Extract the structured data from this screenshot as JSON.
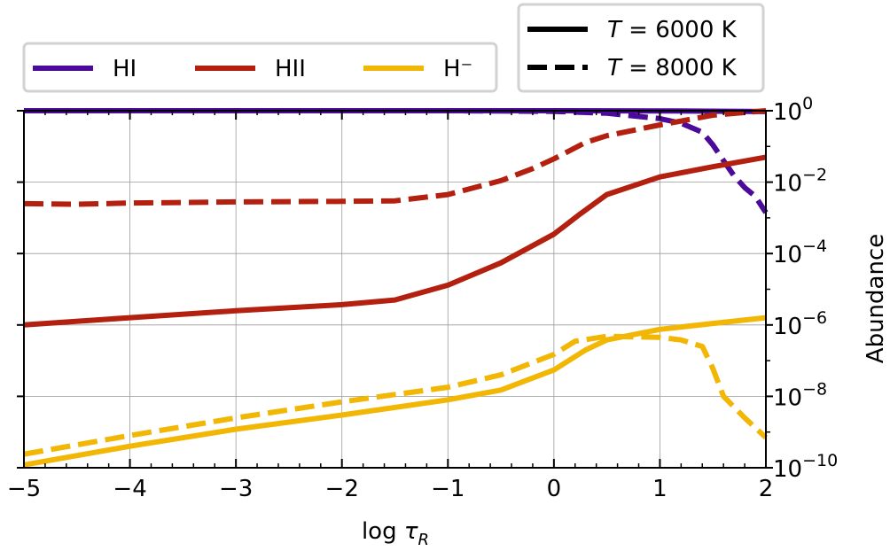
{
  "chart_data": {
    "type": "line",
    "xlabel": "log τ_R",
    "ylabel": "Abundance",
    "xlim": [
      -5,
      2
    ],
    "ylim": [
      1e-10,
      1.5
    ],
    "y_scale": "log",
    "y_axis_side": "right",
    "grid": true,
    "x_ticks": [
      -5,
      -4,
      -3,
      -2,
      -1,
      0,
      1,
      2
    ],
    "x_tick_labels": [
      "−5",
      "−4",
      "−3",
      "−2",
      "−1",
      "0",
      "1",
      "2"
    ],
    "y_ticks": [
      1e-10,
      1e-08,
      1e-06,
      0.0001,
      0.01,
      1
    ],
    "y_tick_labels": [
      {
        "base": "10",
        "exp": "−10"
      },
      {
        "base": "10",
        "exp": "−8"
      },
      {
        "base": "10",
        "exp": "−6"
      },
      {
        "base": "10",
        "exp": "−4"
      },
      {
        "base": "10",
        "exp": "−2"
      },
      {
        "base": "10",
        "exp": "0"
      }
    ],
    "legend_species": {
      "placement": "above plot, left",
      "entries": [
        {
          "label": "HI",
          "color": "#4b0a9a"
        },
        {
          "label": "HII",
          "color": "#b3200f"
        },
        {
          "label": "H⁻",
          "color": "#f2b705"
        }
      ]
    },
    "legend_temperature": {
      "placement": "above plot, right",
      "entries": [
        {
          "label_T": "T",
          "label_rest": " = 6000 K",
          "style": "solid"
        },
        {
          "label_T": "T",
          "label_rest": " = 8000 K",
          "style": "dashed"
        }
      ]
    },
    "series": [
      {
        "species": "HI",
        "temperature": "6000 K",
        "style": "solid",
        "color": "#4b0a9a",
        "x": [
          -5,
          -3,
          -1,
          0,
          1,
          2
        ],
        "y": [
          1.0,
          1.0,
          1.0,
          0.9998,
          0.99,
          0.95
        ]
      },
      {
        "species": "HI",
        "temperature": "8000 K",
        "style": "dashed",
        "color": "#4b0a9a",
        "x": [
          -5,
          -2,
          -1,
          0,
          0.5,
          1.0,
          1.2,
          1.4,
          1.5,
          1.6,
          1.7,
          1.8,
          1.9,
          2.0
        ],
        "y": [
          1.0,
          1.0,
          0.998,
          0.96,
          0.85,
          0.6,
          0.45,
          0.25,
          0.11,
          0.04,
          0.015,
          0.007,
          0.004,
          0.0014
        ]
      },
      {
        "species": "HII",
        "temperature": "6000 K",
        "style": "solid",
        "color": "#b3200f",
        "x": [
          -5,
          -4,
          -3,
          -2,
          -1.5,
          -1,
          -0.5,
          0,
          0.25,
          0.5,
          1,
          1.5,
          2
        ],
        "y": [
          1e-06,
          1.6e-06,
          2.5e-06,
          3.7e-06,
          5e-06,
          1.3e-05,
          5.5e-05,
          0.00035,
          0.0013,
          0.0045,
          0.014,
          0.027,
          0.05
        ]
      },
      {
        "species": "HII",
        "temperature": "8000 K",
        "style": "dashed",
        "color": "#b3200f",
        "x": [
          -5,
          -4.5,
          -4,
          -3,
          -2,
          -1.5,
          -1,
          -0.5,
          -0.2,
          0,
          0.3,
          0.5,
          1,
          1.5,
          2
        ],
        "y": [
          0.0025,
          0.0024,
          0.0026,
          0.0028,
          0.0029,
          0.003,
          0.0045,
          0.011,
          0.024,
          0.045,
          0.13,
          0.2,
          0.4,
          0.75,
          1.0
        ]
      },
      {
        "species": "H⁻",
        "temperature": "6000 K",
        "style": "solid",
        "color": "#f2b705",
        "x": [
          -5,
          -4,
          -3,
          -2,
          -1,
          -0.5,
          0,
          0.3,
          0.5,
          1,
          1.5,
          2
        ],
        "y": [
          1.2e-10,
          4e-10,
          1.2e-09,
          3e-09,
          8e-09,
          1.5e-08,
          5.5e-08,
          2e-07,
          3.8e-07,
          7.5e-07,
          1.1e-06,
          1.6e-06
        ]
      },
      {
        "species": "H⁻",
        "temperature": "8000 K",
        "style": "dashed",
        "color": "#f2b705",
        "x": [
          -5,
          -4,
          -3,
          -2,
          -1,
          -0.5,
          0,
          0.2,
          0.5,
          1,
          1.2,
          1.4,
          1.5,
          1.6,
          1.8,
          2.0
        ],
        "y": [
          2.4e-10,
          8e-10,
          2.5e-09,
          7e-09,
          1.8e-08,
          4e-08,
          1.5e-07,
          3.5e-07,
          4.8e-07,
          4.5e-07,
          3.8e-07,
          2.5e-07,
          6e-08,
          1e-08,
          2.5e-09,
          7e-10
        ]
      }
    ]
  }
}
